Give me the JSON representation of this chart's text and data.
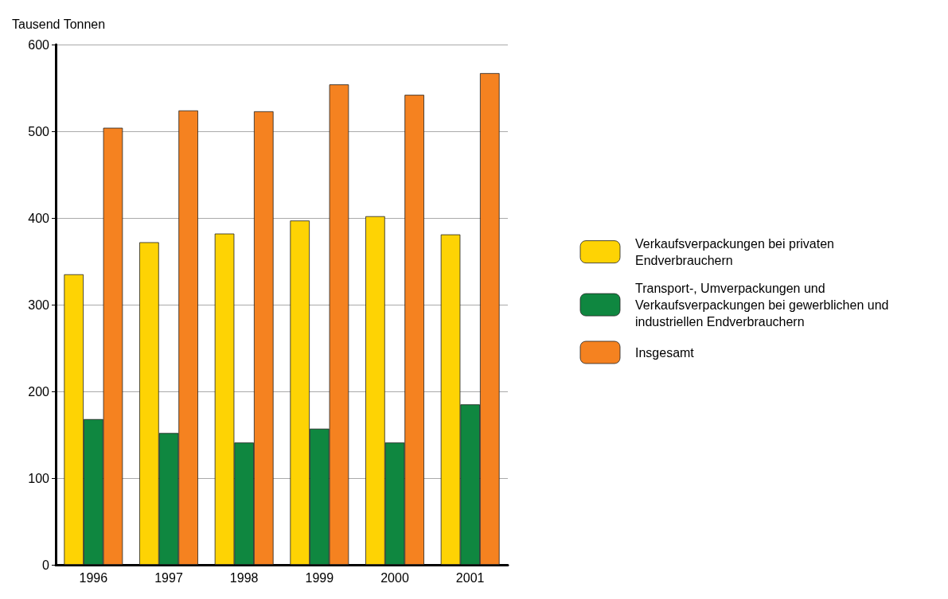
{
  "chart_data": {
    "type": "bar",
    "ylabel": "Tausend Tonnen",
    "categories": [
      "1996",
      "1997",
      "1998",
      "1999",
      "2000",
      "2001"
    ],
    "series": [
      {
        "name": "Verkaufsverpackungen bei privaten Endverbrauchern",
        "color": "#fed304",
        "values": [
          335,
          372,
          382,
          397,
          402,
          381
        ]
      },
      {
        "name": "Transport-, Umverpackungen und Verkaufsverpackungen bei gewerblichen und industriellen Endverbrauchern",
        "color": "#0f8740",
        "values": [
          168,
          152,
          141,
          157,
          141,
          185
        ]
      },
      {
        "name": "Insgesamt",
        "color": "#f58220",
        "values": [
          504,
          524,
          523,
          554,
          542,
          567
        ]
      }
    ],
    "ylim": [
      0,
      600
    ],
    "yticks": [
      0,
      100,
      200,
      300,
      400,
      500,
      600
    ],
    "grid": "y",
    "legend": "right"
  }
}
